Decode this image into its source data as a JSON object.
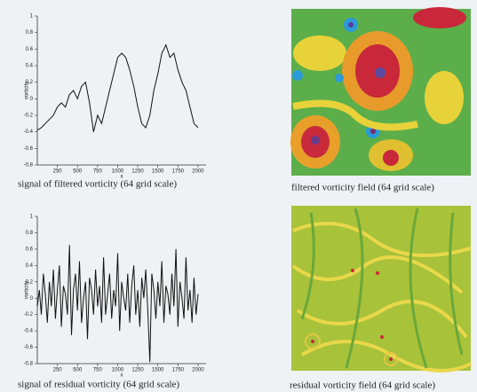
{
  "chart_data": [
    {
      "type": "line",
      "y_label": "vorticity",
      "x_label": "x",
      "caption": "signal of filtered vorticity (64 grid scale)",
      "color": "#111111",
      "xlim": [
        0,
        2100
      ],
      "xticks": [
        250,
        500,
        750,
        1000,
        1250,
        1500,
        1750,
        2000
      ],
      "ylim": [
        -0.8,
        1
      ],
      "yticks": [
        -0.8,
        -0.6,
        -0.4,
        -0.2,
        0,
        0.2,
        0.4,
        0.6,
        0.8,
        1
      ],
      "x": [
        0,
        50,
        100,
        150,
        200,
        250,
        300,
        350,
        400,
        450,
        500,
        550,
        600,
        650,
        700,
        750,
        800,
        850,
        900,
        950,
        1000,
        1050,
        1100,
        1150,
        1200,
        1250,
        1300,
        1350,
        1400,
        1450,
        1500,
        1550,
        1600,
        1650,
        1700,
        1750,
        1800,
        1850,
        1900,
        1950,
        2000
      ],
      "values": [
        -0.38,
        -0.35,
        -0.3,
        -0.25,
        -0.2,
        -0.1,
        -0.05,
        -0.1,
        0.05,
        0.1,
        0.0,
        0.15,
        0.2,
        -0.05,
        -0.4,
        -0.2,
        -0.3,
        -0.1,
        0.1,
        0.3,
        0.5,
        0.55,
        0.5,
        0.35,
        0.15,
        -0.1,
        -0.3,
        -0.35,
        -0.2,
        0.1,
        0.3,
        0.55,
        0.65,
        0.5,
        0.55,
        0.35,
        0.2,
        0.1,
        -0.1,
        -0.3,
        -0.35
      ]
    },
    {
      "type": "line",
      "y_label": "vorticity",
      "x_label": "x",
      "caption": "signal of residual vorticity (64 grid scale)",
      "color": "#111111",
      "xlim": [
        0,
        2100
      ],
      "xticks": [
        250,
        500,
        750,
        1000,
        1250,
        1500,
        1750,
        2000
      ],
      "ylim": [
        -0.8,
        1
      ],
      "yticks": [
        -0.8,
        -0.6,
        -0.4,
        -0.2,
        0,
        0.2,
        0.4,
        0.6,
        0.8,
        1
      ],
      "x": [
        0,
        25,
        50,
        75,
        100,
        125,
        150,
        175,
        200,
        225,
        250,
        275,
        300,
        325,
        350,
        375,
        400,
        425,
        450,
        475,
        500,
        525,
        550,
        575,
        600,
        625,
        650,
        675,
        700,
        725,
        750,
        775,
        800,
        825,
        850,
        875,
        900,
        925,
        950,
        975,
        1000,
        1025,
        1050,
        1075,
        1100,
        1125,
        1150,
        1175,
        1200,
        1225,
        1250,
        1275,
        1300,
        1325,
        1350,
        1375,
        1400,
        1425,
        1450,
        1475,
        1500,
        1525,
        1550,
        1575,
        1600,
        1625,
        1650,
        1675,
        1700,
        1725,
        1750,
        1775,
        1800,
        1825,
        1850,
        1875,
        1900,
        1925,
        1950,
        1975,
        2000
      ],
      "values": [
        -0.1,
        0.1,
        -0.2,
        0.3,
        0.05,
        -0.3,
        0.2,
        -0.1,
        0.35,
        -0.25,
        0.1,
        0.4,
        -0.35,
        0.15,
        0.05,
        -0.2,
        0.65,
        -0.45,
        0.1,
        0.3,
        -0.15,
        0.45,
        -0.3,
        0.0,
        0.2,
        -0.5,
        0.25,
        0.1,
        -0.2,
        0.35,
        -0.1,
        0.15,
        -0.3,
        0.5,
        -0.2,
        0.05,
        0.3,
        -0.25,
        0.1,
        -0.1,
        0.55,
        -0.4,
        0.2,
        0.0,
        -0.15,
        0.3,
        -0.3,
        0.15,
        0.4,
        -0.2,
        0.1,
        -0.35,
        0.25,
        0.0,
        0.35,
        -0.15,
        -0.78,
        0.3,
        0.1,
        -0.25,
        0.2,
        -0.1,
        0.45,
        -0.3,
        0.15,
        0.05,
        -0.2,
        0.3,
        -0.1,
        0.6,
        -0.35,
        0.2,
        0.0,
        -0.25,
        0.5,
        -0.15,
        0.1,
        -0.3,
        0.25,
        -0.2,
        0.05
      ]
    }
  ],
  "images": [
    {
      "caption": "filtered vorticity field (64 grid scale)"
    },
    {
      "caption": "residual vorticity field (64 grid scale)"
    }
  ]
}
